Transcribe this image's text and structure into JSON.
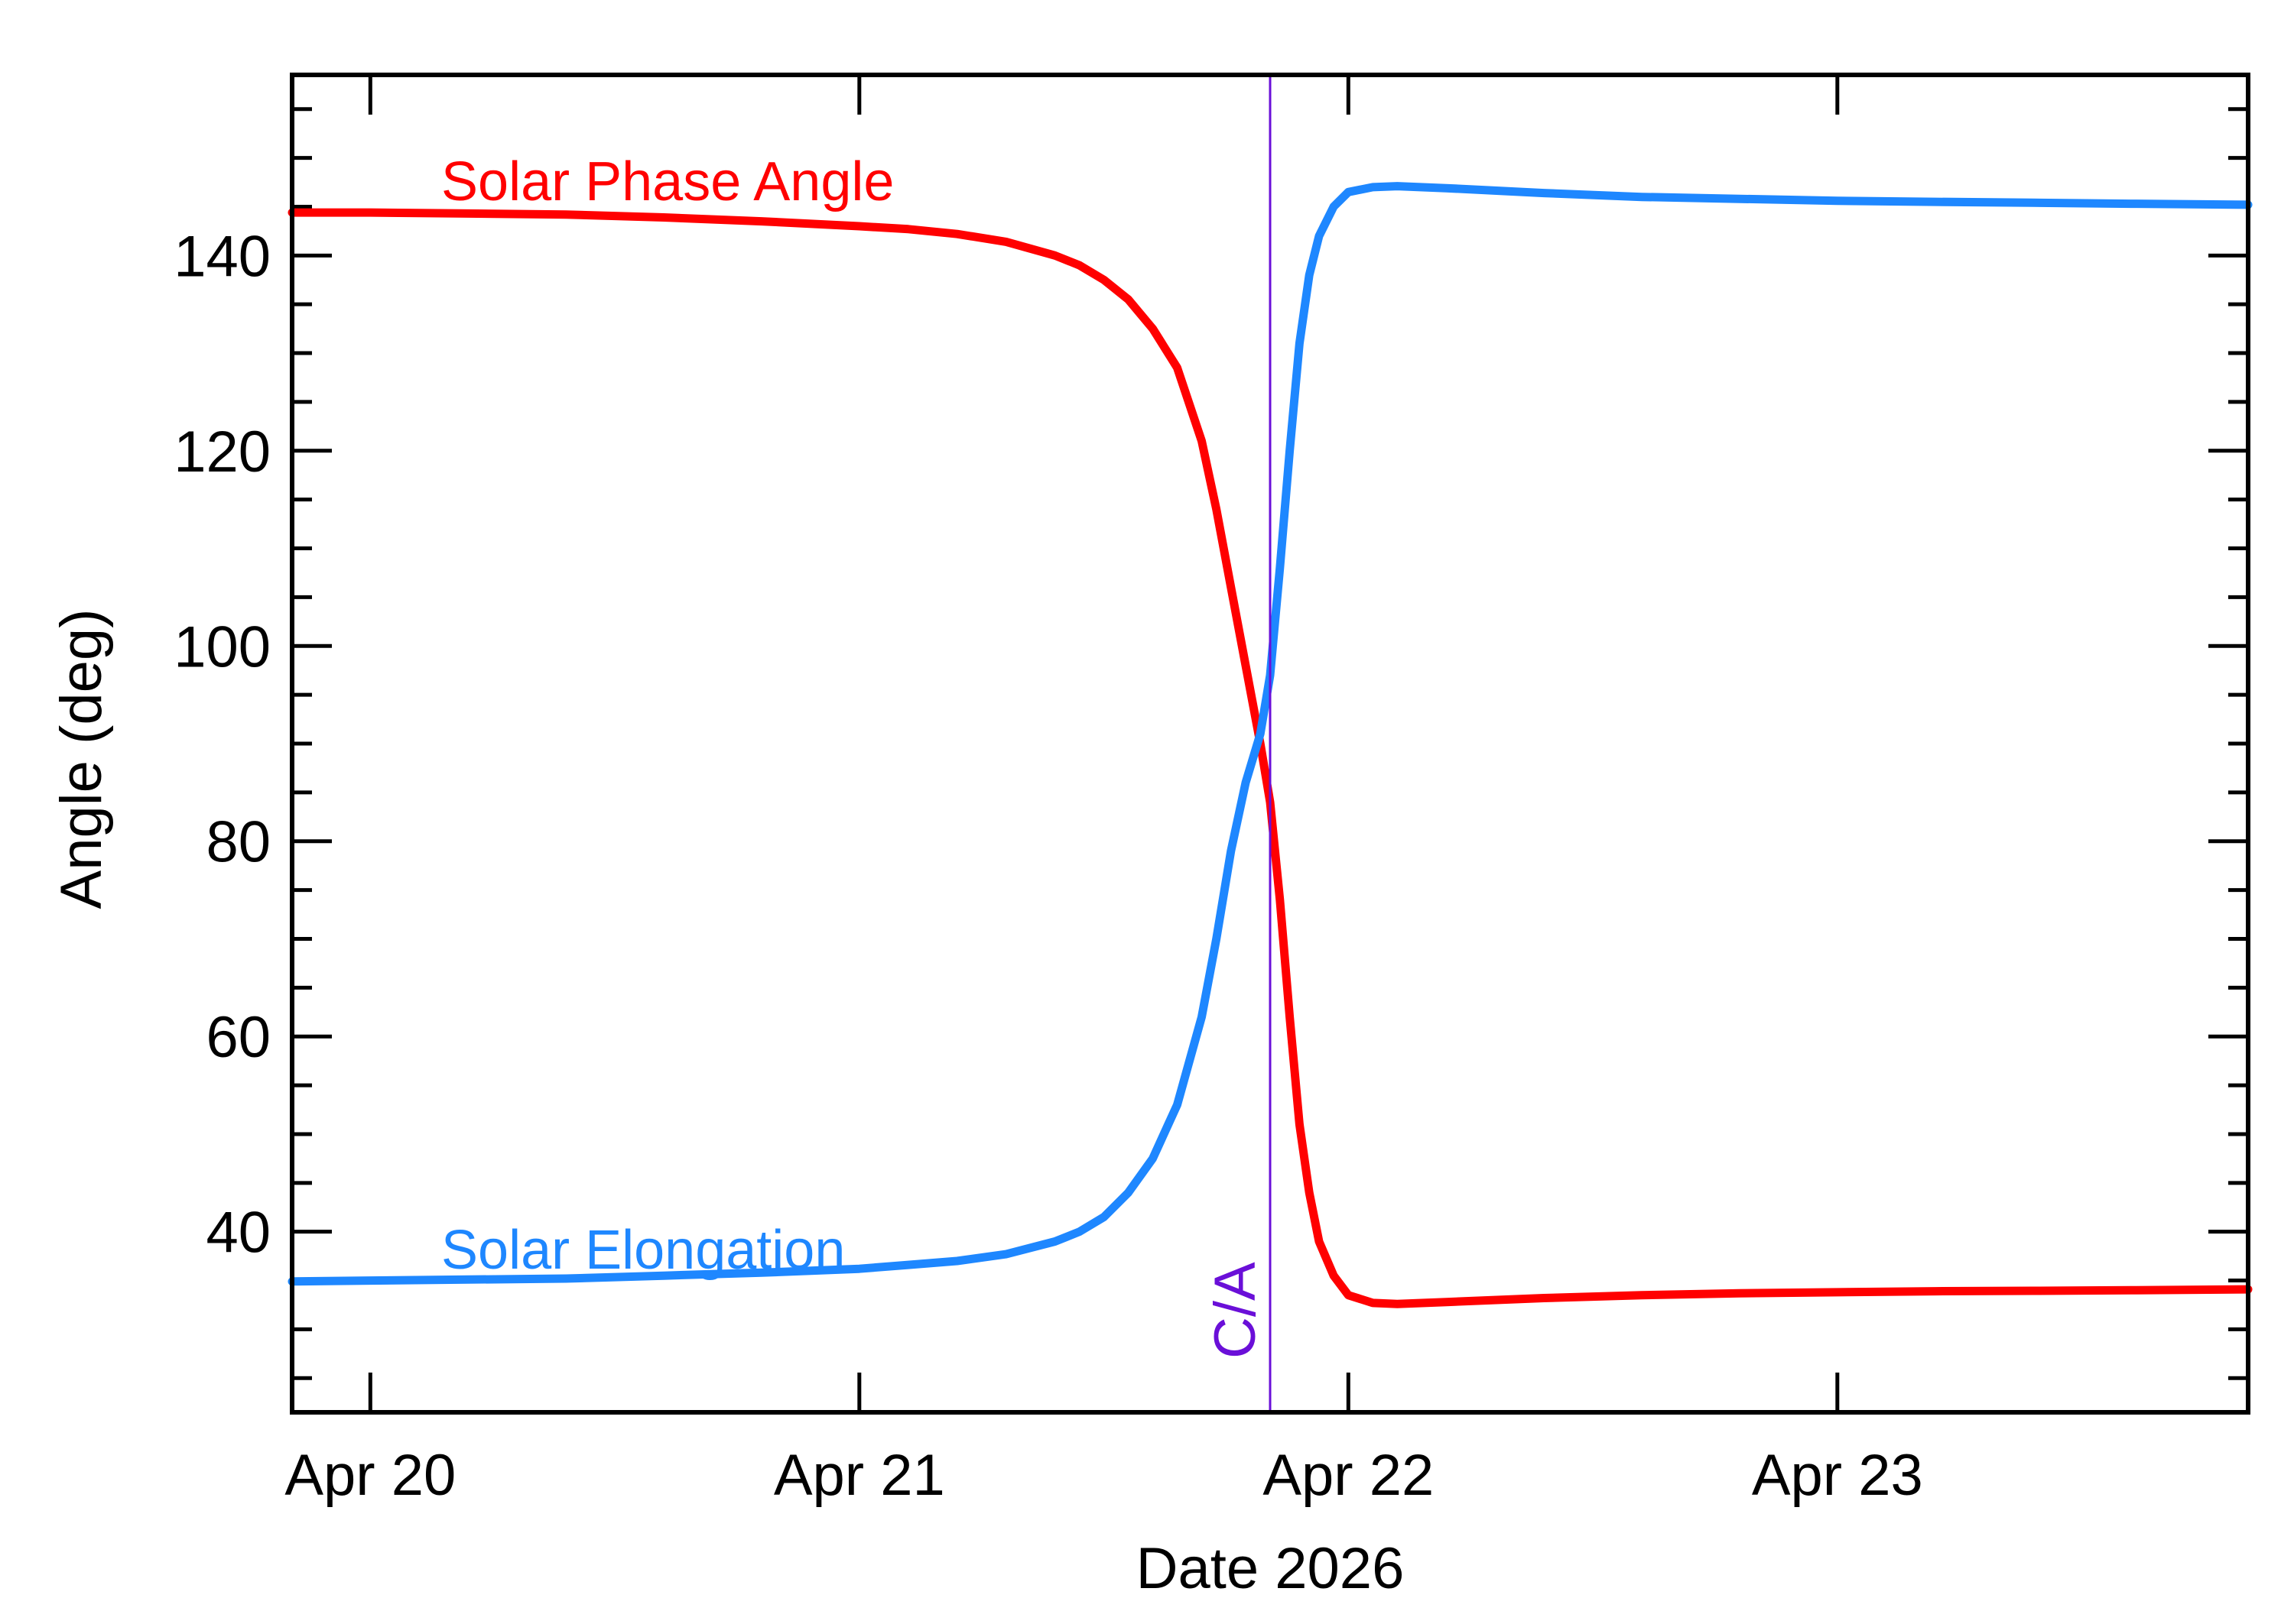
{
  "chart_data": {
    "type": "line",
    "title": "",
    "xlabel": "Date 2026",
    "ylabel": "Angle (deg)",
    "x_ticks": [
      {
        "label": "Apr 20",
        "day": 20
      },
      {
        "label": "Apr 21",
        "day": 21
      },
      {
        "label": "Apr 22",
        "day": 22
      },
      {
        "label": "Apr 23",
        "day": 23
      }
    ],
    "xlim": [
      19.84,
      23.84
    ],
    "y_ticks": [
      40,
      60,
      80,
      100,
      120,
      140
    ],
    "ylim": [
      21.5,
      158.5
    ],
    "grid": false,
    "closest_approach": {
      "label": "C/A",
      "day": 21.84,
      "color": "#6a0fd8"
    },
    "series": [
      {
        "name": "Solar Phase Angle",
        "color": "#ff0000",
        "points": [
          [
            19.84,
            144.4
          ],
          [
            20.0,
            144.4
          ],
          [
            20.2,
            144.3
          ],
          [
            20.4,
            144.2
          ],
          [
            20.6,
            143.9
          ],
          [
            20.8,
            143.5
          ],
          [
            21.0,
            143.0
          ],
          [
            21.1,
            142.7
          ],
          [
            21.2,
            142.2
          ],
          [
            21.3,
            141.4
          ],
          [
            21.4,
            140.0
          ],
          [
            21.45,
            139.0
          ],
          [
            21.5,
            137.5
          ],
          [
            21.55,
            135.5
          ],
          [
            21.6,
            132.5
          ],
          [
            21.65,
            128.5
          ],
          [
            21.7,
            121.0
          ],
          [
            21.73,
            114.0
          ],
          [
            21.76,
            106.0
          ],
          [
            21.79,
            98.0
          ],
          [
            21.82,
            90.0
          ],
          [
            21.84,
            84.0
          ],
          [
            21.86,
            74.0
          ],
          [
            21.88,
            62.0
          ],
          [
            21.9,
            51.0
          ],
          [
            21.92,
            44.0
          ],
          [
            21.94,
            39.0
          ],
          [
            21.97,
            35.5
          ],
          [
            22.0,
            33.5
          ],
          [
            22.05,
            32.7
          ],
          [
            22.1,
            32.6
          ],
          [
            22.2,
            32.8
          ],
          [
            22.4,
            33.2
          ],
          [
            22.6,
            33.5
          ],
          [
            22.8,
            33.7
          ],
          [
            23.0,
            33.8
          ],
          [
            23.2,
            33.9
          ],
          [
            23.4,
            33.95
          ],
          [
            23.6,
            34.0
          ],
          [
            23.84,
            34.1
          ]
        ]
      },
      {
        "name": "Solar Elongation",
        "color": "#1e87ff",
        "points": [
          [
            19.84,
            34.9
          ],
          [
            20.0,
            35.0
          ],
          [
            20.2,
            35.1
          ],
          [
            20.4,
            35.2
          ],
          [
            20.6,
            35.5
          ],
          [
            20.8,
            35.8
          ],
          [
            21.0,
            36.2
          ],
          [
            21.1,
            36.6
          ],
          [
            21.2,
            37.0
          ],
          [
            21.3,
            37.7
          ],
          [
            21.4,
            39.0
          ],
          [
            21.45,
            40.0
          ],
          [
            21.5,
            41.5
          ],
          [
            21.55,
            44.0
          ],
          [
            21.6,
            47.5
          ],
          [
            21.65,
            53.0
          ],
          [
            21.7,
            62.0
          ],
          [
            21.73,
            70.0
          ],
          [
            21.76,
            79.0
          ],
          [
            21.79,
            86.0
          ],
          [
            21.82,
            91.0
          ],
          [
            21.84,
            97.0
          ],
          [
            21.86,
            108.0
          ],
          [
            21.88,
            120.0
          ],
          [
            21.9,
            131.0
          ],
          [
            21.92,
            138.0
          ],
          [
            21.94,
            142.0
          ],
          [
            21.97,
            145.0
          ],
          [
            22.0,
            146.5
          ],
          [
            22.05,
            147.0
          ],
          [
            22.1,
            147.1
          ],
          [
            22.2,
            146.9
          ],
          [
            22.4,
            146.4
          ],
          [
            22.6,
            146.0
          ],
          [
            22.8,
            145.8
          ],
          [
            23.0,
            145.6
          ],
          [
            23.2,
            145.5
          ],
          [
            23.4,
            145.4
          ],
          [
            23.6,
            145.3
          ],
          [
            23.84,
            145.2
          ]
        ]
      }
    ]
  }
}
